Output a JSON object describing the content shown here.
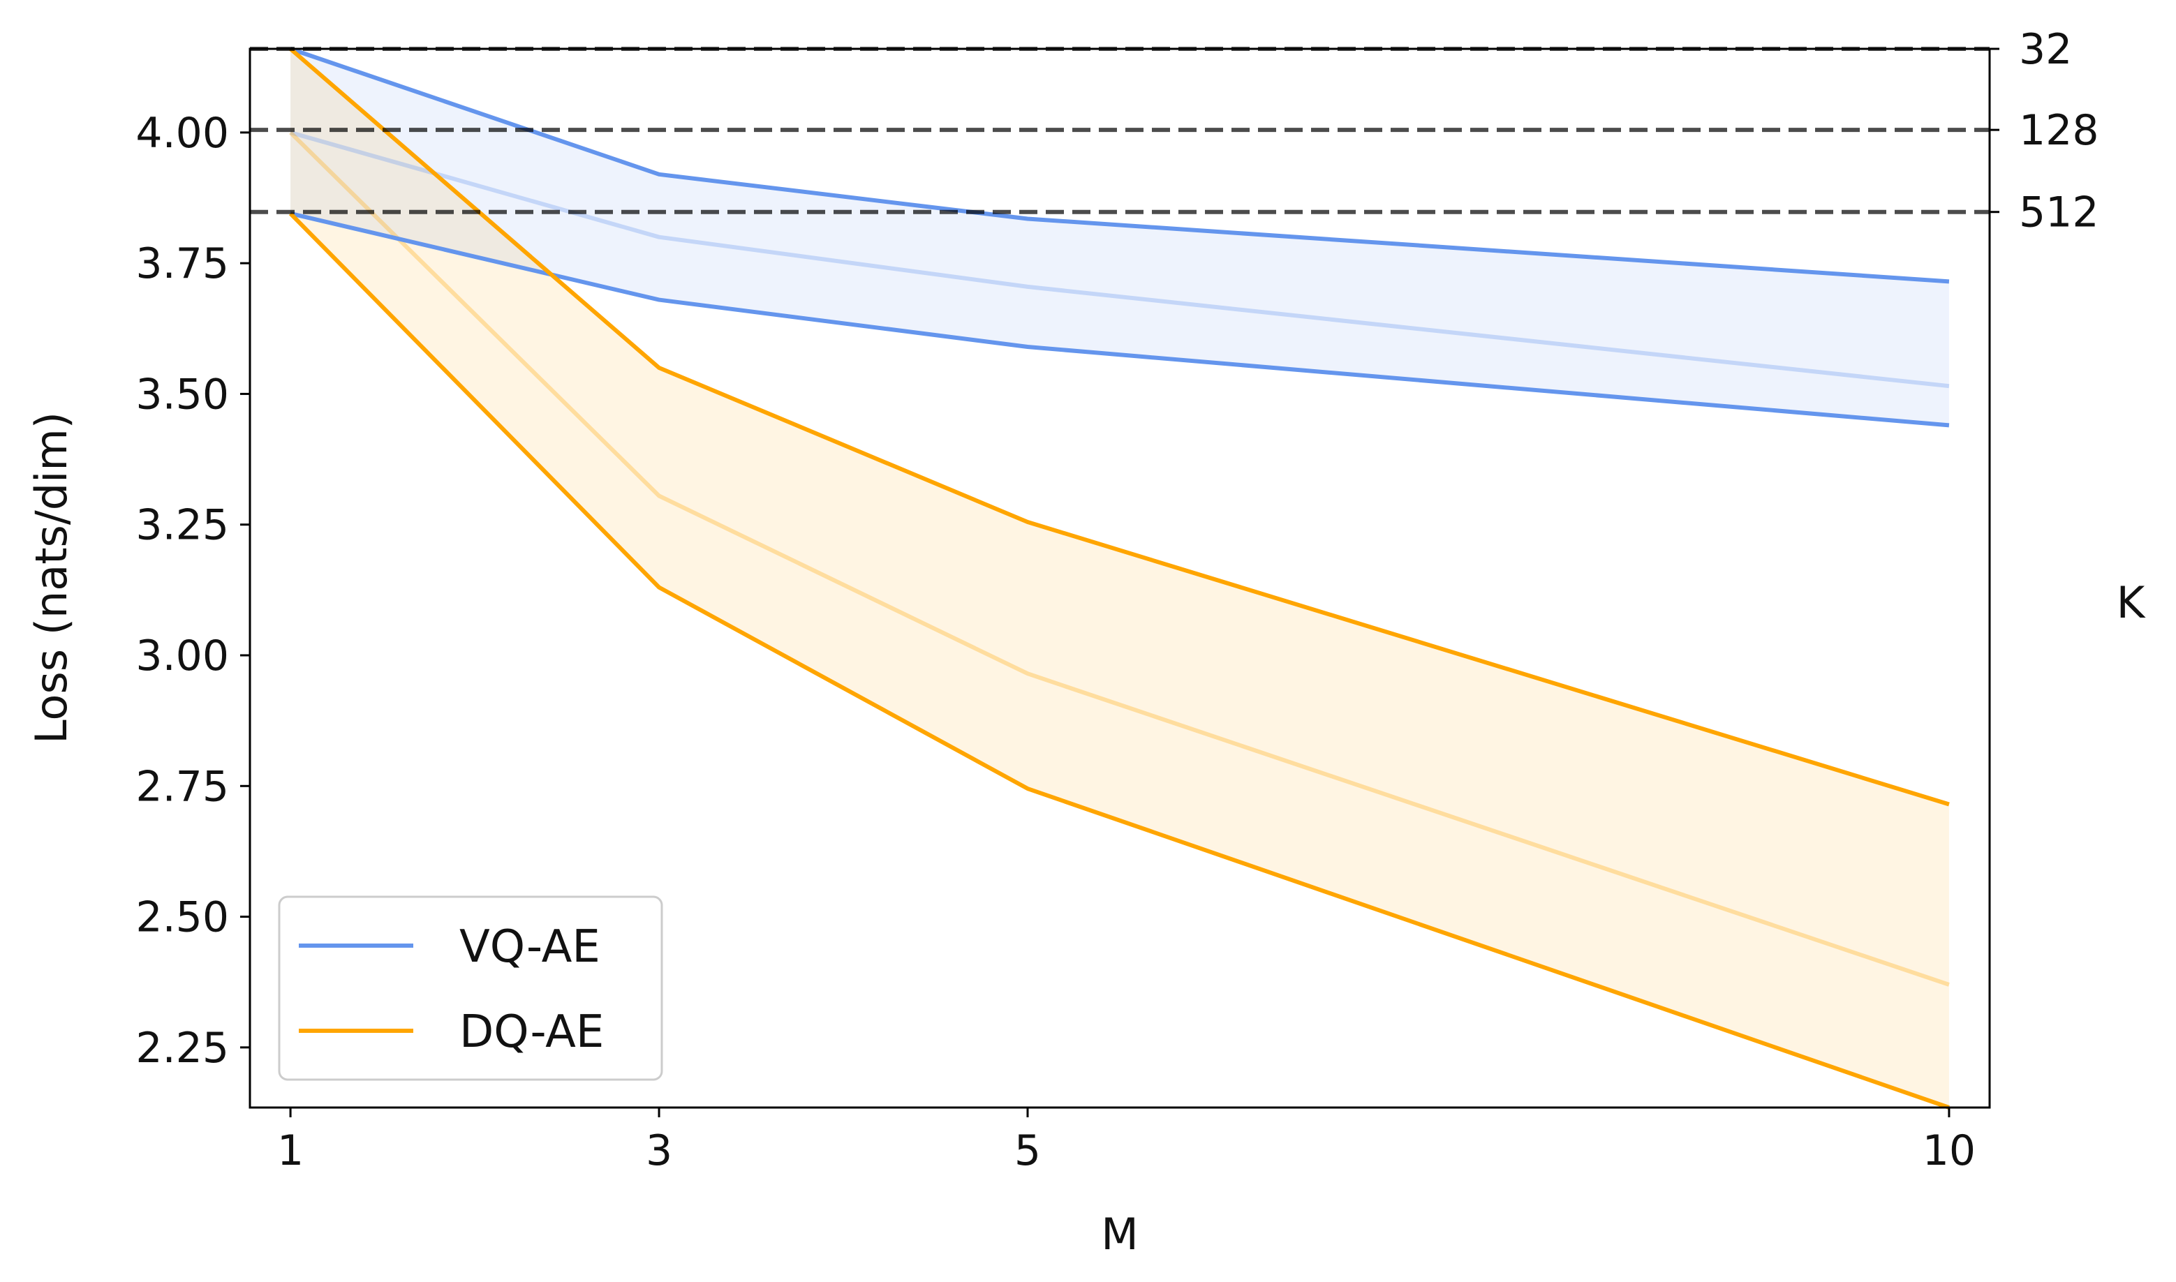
{
  "chart_data": {
    "type": "line",
    "xlabel": "M",
    "ylabel": "Loss (nats/dim)",
    "y2label": "K",
    "x": [
      1,
      3,
      5,
      10
    ],
    "xticks": [
      "1",
      "3",
      "5",
      "10"
    ],
    "ylim": [
      2.135,
      4.16
    ],
    "yticks": [
      2.25,
      2.5,
      2.75,
      3.0,
      3.25,
      3.5,
      3.75,
      4.0
    ],
    "ytick_labels": [
      "2.25",
      "2.50",
      "2.75",
      "3.00",
      "3.25",
      "3.50",
      "3.75",
      "4.00"
    ],
    "legend_position": "lower-left",
    "series": [
      {
        "name": "VQ-AE",
        "color": "#6495ED",
        "upper": [
          4.16,
          3.92,
          3.835,
          3.715
        ],
        "mean": [
          4.0,
          3.8,
          3.705,
          3.515
        ],
        "lower": [
          3.845,
          3.68,
          3.59,
          3.44
        ]
      },
      {
        "name": "DQ-AE",
        "color": "#FFA500",
        "upper": [
          4.16,
          3.55,
          3.255,
          2.715
        ],
        "mean": [
          4.0,
          3.305,
          2.965,
          2.37
        ],
        "lower": [
          3.845,
          3.13,
          2.745,
          2.135
        ]
      }
    ],
    "reference_lines": [
      {
        "label": "32",
        "y": 4.16
      },
      {
        "label": "128",
        "y": 4.005
      },
      {
        "label": "512",
        "y": 3.848
      }
    ],
    "grid": false
  }
}
